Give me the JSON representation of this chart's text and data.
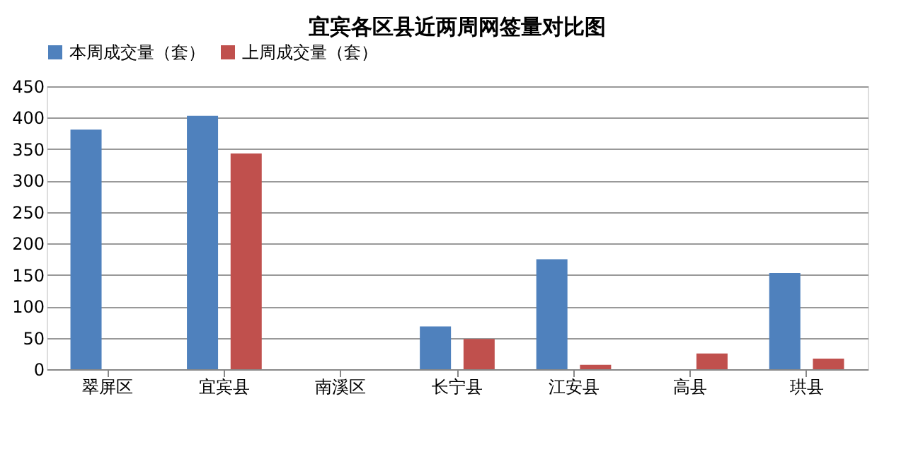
{
  "chart_data": {
    "type": "bar",
    "title": "宜宾各区县近两周网签量对比图",
    "categories": [
      "翠屏区",
      "宜宾县",
      "南溪区",
      "长宁县",
      "江安县",
      "高县",
      "珙县"
    ],
    "series": [
      {
        "name": "本周成交量（套）",
        "color": "#4f81bd",
        "values": [
          381,
          403,
          0,
          68,
          175,
          null,
          153
        ]
      },
      {
        "name": "上周成交量（套）",
        "color": "#c0504d",
        "values": [
          0,
          343,
          0,
          48,
          7,
          25,
          17
        ]
      }
    ],
    "ylim": [
      0,
      450
    ],
    "yticks": [
      0,
      50,
      100,
      150,
      200,
      250,
      300,
      350,
      400,
      450
    ],
    "grid": "y",
    "legend": "top"
  }
}
